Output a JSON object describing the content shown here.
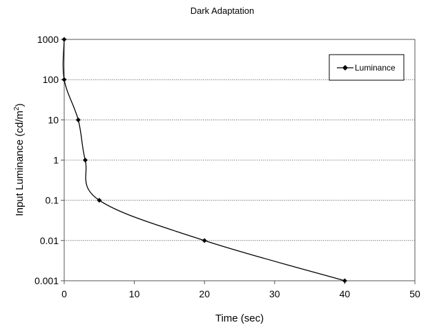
{
  "chart_data": {
    "type": "line",
    "title": "Dark Adaptation",
    "xlabel": "Time (sec)",
    "ylabel_main": "Input Luminance (cd/m",
    "ylabel_sup": "2",
    "ylabel_end": ")",
    "ylabel": "Input Luminance (cd/m2)",
    "x_scale": "linear",
    "y_scale": "log",
    "xlim": [
      0,
      50
    ],
    "ylim": [
      0.001,
      1000
    ],
    "x_ticks": [
      "0",
      "10",
      "20",
      "30",
      "40",
      "50"
    ],
    "y_ticks": [
      "0.001",
      "0.01",
      "0.1",
      "1",
      "10",
      "100",
      "1000"
    ],
    "grid": "horizontal dotted",
    "legend_position": "top-right",
    "series": [
      {
        "name": "Luminance",
        "color": "#000000",
        "marker": "diamond",
        "x": [
          0,
          0,
          2,
          3,
          5,
          20,
          40
        ],
        "y": [
          1000,
          100,
          10,
          1,
          0.1,
          0.01,
          0.001
        ]
      }
    ]
  }
}
